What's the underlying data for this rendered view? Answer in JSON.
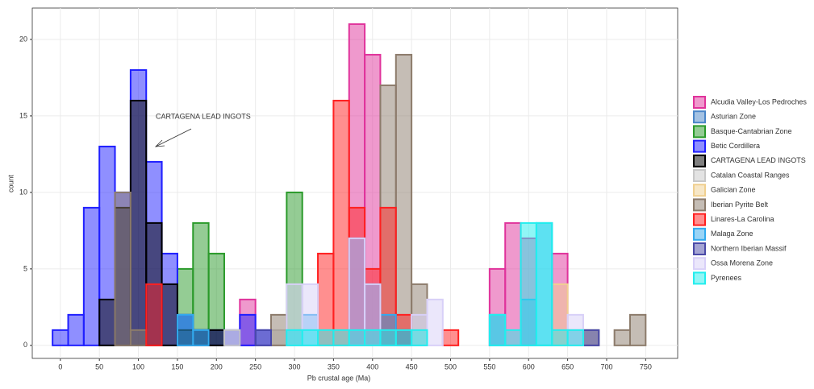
{
  "chart_data": {
    "type": "histogram",
    "x_label": "Pb crustal age (Ma)",
    "y_label": "count",
    "annotation": "CARTAGENA LEAD INGOTS",
    "bins": [
      -10,
      10,
      30,
      50,
      70,
      90,
      110,
      130,
      150,
      170,
      190,
      210,
      230,
      250,
      270,
      290,
      310,
      330,
      350,
      370,
      390,
      410,
      430,
      450,
      470,
      490,
      510,
      530,
      550,
      570,
      590,
      610,
      630,
      650,
      670,
      690,
      710,
      730,
      750
    ],
    "xlim": [
      -36,
      791
    ],
    "ylim": [
      -0.85,
      22.05
    ],
    "xticks": [
      0,
      50,
      100,
      150,
      200,
      250,
      300,
      350,
      400,
      450,
      500,
      550,
      600,
      650,
      700,
      750
    ],
    "yticks": [
      0,
      5,
      10,
      15,
      20
    ],
    "grid": true,
    "series": [
      {
        "name": "Alcudia Valley-Los Pedroches",
        "color": "#e0339b",
        "values": [
          0,
          0,
          0,
          0,
          0,
          0,
          0,
          0,
          0,
          0,
          0,
          0,
          3,
          0,
          0,
          0,
          0,
          0,
          0,
          21,
          19,
          2,
          0,
          0,
          0,
          0,
          0,
          0,
          5,
          8,
          7,
          0,
          6,
          1,
          0,
          0,
          0,
          0
        ]
      },
      {
        "name": "Asturian Zone",
        "color": "#4a86c8",
        "values": [
          0,
          0,
          0,
          0,
          0,
          0,
          0,
          0,
          2,
          1,
          0,
          0,
          0,
          0,
          0,
          0,
          0,
          0,
          0,
          0,
          0,
          0,
          0,
          0,
          0,
          0,
          0,
          0,
          0,
          0,
          0,
          0,
          0,
          0,
          0,
          0,
          0,
          0
        ]
      },
      {
        "name": "Basque-Cantabrian Zone",
        "color": "#2a9a2a",
        "values": [
          0,
          0,
          0,
          0,
          0,
          0,
          0,
          0,
          5,
          8,
          6,
          0,
          0,
          0,
          0,
          10,
          0,
          0,
          0,
          0,
          0,
          0,
          0,
          0,
          0,
          0,
          0,
          0,
          0,
          0,
          0,
          0,
          0,
          0,
          0,
          0,
          0,
          0
        ]
      },
      {
        "name": "Betic Cordillera",
        "color": "#1f1fff",
        "values": [
          1,
          2,
          9,
          13,
          10,
          18,
          12,
          6,
          2,
          1,
          1,
          1,
          2,
          1,
          0,
          0,
          0,
          0,
          0,
          0,
          0,
          0,
          0,
          0,
          0,
          0,
          0,
          0,
          0,
          0,
          0,
          0,
          0,
          0,
          0,
          0,
          0,
          0
        ]
      },
      {
        "name": "CARTAGENA LEAD INGOTS",
        "color": "#000000",
        "values": [
          0,
          0,
          0,
          3,
          9,
          16,
          8,
          4,
          1,
          1,
          1,
          0,
          0,
          0,
          0,
          0,
          0,
          0,
          0,
          0,
          0,
          0,
          0,
          0,
          0,
          0,
          0,
          0,
          0,
          0,
          0,
          0,
          0,
          0,
          0,
          0,
          0,
          0
        ]
      },
      {
        "name": "Catalan Coastal Ranges",
        "color": "#c8c8c8",
        "values": [
          0,
          0,
          0,
          0,
          0,
          0,
          0,
          0,
          0,
          0,
          0,
          1,
          0,
          0,
          1,
          0,
          0,
          0,
          0,
          0,
          0,
          0,
          0,
          0,
          0,
          0,
          0,
          0,
          0,
          0,
          0,
          0,
          0,
          0,
          0,
          0,
          0,
          0
        ]
      },
      {
        "name": "Galician Zone",
        "color": "#f0d090",
        "values": [
          0,
          0,
          0,
          0,
          0,
          0,
          0,
          0,
          0,
          0,
          0,
          0,
          0,
          0,
          0,
          0,
          0,
          0,
          0,
          0,
          0,
          0,
          0,
          0,
          0,
          0,
          0,
          0,
          0,
          0,
          0,
          0,
          4,
          0,
          0,
          0,
          0,
          0
        ]
      },
      {
        "name": "Iberian Pyrite Belt",
        "color": "#8c7b6b",
        "values": [
          0,
          0,
          0,
          0,
          10,
          1,
          0,
          0,
          0,
          0,
          0,
          0,
          0,
          0,
          2,
          0,
          0,
          0,
          0,
          0,
          0,
          17,
          19,
          4,
          0,
          0,
          0,
          0,
          0,
          0,
          0,
          0,
          0,
          0,
          1,
          0,
          1,
          2
        ]
      },
      {
        "name": "Linares-La Carolina",
        "color": "#ff2020",
        "values": [
          0,
          0,
          0,
          0,
          0,
          0,
          4,
          0,
          0,
          0,
          0,
          0,
          0,
          0,
          0,
          0,
          0,
          6,
          16,
          9,
          5,
          9,
          2,
          0,
          0,
          1,
          0,
          0,
          0,
          0,
          0,
          0,
          0,
          0,
          0,
          0,
          0,
          0
        ]
      },
      {
        "name": "Malaga Zone",
        "color": "#33aaee",
        "values": [
          0,
          0,
          0,
          0,
          0,
          0,
          0,
          0,
          2,
          1,
          0,
          0,
          0,
          0,
          0,
          1,
          2,
          0,
          0,
          0,
          0,
          2,
          0,
          0,
          0,
          0,
          0,
          0,
          2,
          0,
          3,
          8,
          0,
          0,
          0,
          0,
          0,
          0
        ]
      },
      {
        "name": "Northern Iberian Massif",
        "color": "#4a4aa8",
        "values": [
          0,
          0,
          0,
          0,
          0,
          0,
          0,
          0,
          0,
          0,
          0,
          0,
          0,
          1,
          0,
          0,
          0,
          0,
          0,
          7,
          4,
          0,
          1,
          0,
          0,
          0,
          0,
          0,
          0,
          0,
          0,
          0,
          0,
          0,
          1,
          0,
          0,
          0
        ]
      },
      {
        "name": "Ossa Morena Zone",
        "color": "#d8d0f8",
        "values": [
          0,
          0,
          0,
          0,
          0,
          0,
          0,
          0,
          0,
          0,
          0,
          0,
          0,
          0,
          0,
          4,
          4,
          0,
          0,
          7,
          4,
          0,
          0,
          2,
          3,
          0,
          0,
          0,
          0,
          0,
          0,
          0,
          0,
          2,
          0,
          0,
          0,
          0
        ]
      },
      {
        "name": "Pyrenees",
        "color": "#22eeee",
        "values": [
          0,
          0,
          0,
          0,
          0,
          0,
          0,
          0,
          0,
          0,
          0,
          0,
          0,
          0,
          0,
          1,
          1,
          1,
          1,
          1,
          1,
          1,
          1,
          1,
          0,
          0,
          0,
          0,
          2,
          1,
          8,
          8,
          1,
          1,
          0,
          0,
          0,
          0
        ]
      }
    ]
  }
}
